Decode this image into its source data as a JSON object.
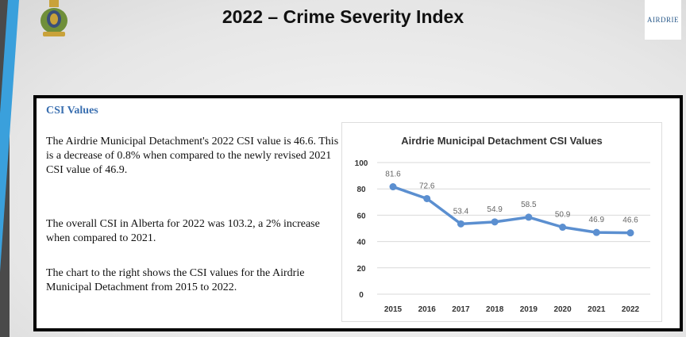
{
  "slide": {
    "title": "2022 – Crime Severity Index",
    "left_logo": "RCMP crest",
    "right_logo": "AIRDRIE"
  },
  "content": {
    "heading": "CSI Values",
    "paragraphs": [
      "The Airdrie Municipal Detachment's 2022 CSI value is 46.6. This is a decrease of 0.8% when compared to the newly revised 2021 CSI value of 46.9.",
      "The overall CSI in Alberta for 2022 was 103.2, a 2% increase when compared to 2021.",
      "The chart to the right shows the CSI values for the Airdrie Municipal Detachment from 2015 to 2022."
    ]
  },
  "chart_data": {
    "type": "line",
    "title": "Airdrie Municipal Detachment CSI Values",
    "categories": [
      "2015",
      "2016",
      "2017",
      "2018",
      "2019",
      "2020",
      "2021",
      "2022"
    ],
    "values": [
      81.6,
      72.6,
      53.4,
      54.9,
      58.5,
      50.9,
      46.9,
      46.6
    ],
    "data_labels": [
      "81.6",
      "72.6",
      "53.4",
      "54.9",
      "58.5",
      "50.9",
      "46.9",
      "46.6"
    ],
    "y_ticks": [
      "0",
      "20",
      "40",
      "60",
      "80",
      "100"
    ],
    "ylim": [
      0,
      100
    ],
    "grid": true,
    "legend": "none",
    "line_color": "#5b8fd0"
  }
}
